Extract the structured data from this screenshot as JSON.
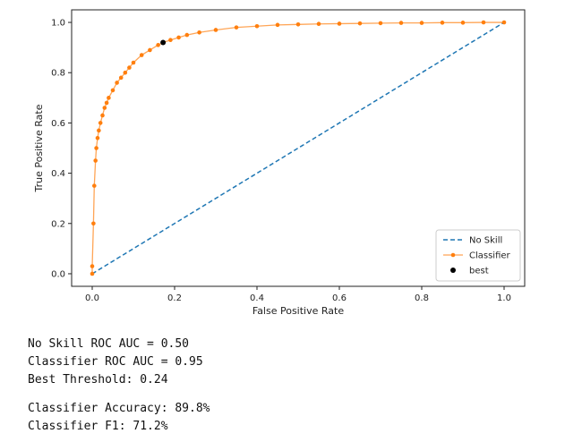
{
  "chart_data": {
    "type": "line",
    "xlabel": "False Positive Rate",
    "ylabel": "True Positive Rate",
    "xlim": [
      -0.05,
      1.05
    ],
    "ylim": [
      -0.05,
      1.05
    ],
    "xticks": [
      0.0,
      0.2,
      0.4,
      0.6,
      0.8,
      1.0
    ],
    "xtick_labels": [
      "0.0",
      "0.2",
      "0.4",
      "0.6",
      "0.8",
      "1.0"
    ],
    "yticks": [
      0.0,
      0.2,
      0.4,
      0.6,
      0.8,
      1.0
    ],
    "ytick_labels": [
      "0.0",
      "0.2",
      "0.4",
      "0.6",
      "0.8",
      "1.0"
    ],
    "grid": false,
    "legend_position": "lower-right",
    "series": [
      {
        "name": "No Skill",
        "style": "dashed",
        "color": "#1f77b4",
        "x": [
          0.0,
          1.0
        ],
        "y": [
          0.0,
          1.0
        ]
      },
      {
        "name": "Classifier",
        "style": "line-with-dots",
        "color": "#ff7f0e",
        "x": [
          0.0,
          0.0,
          0.003,
          0.005,
          0.008,
          0.01,
          0.013,
          0.016,
          0.02,
          0.025,
          0.03,
          0.035,
          0.04,
          0.05,
          0.06,
          0.07,
          0.08,
          0.09,
          0.1,
          0.12,
          0.14,
          0.16,
          0.172,
          0.19,
          0.21,
          0.23,
          0.26,
          0.3,
          0.35,
          0.4,
          0.45,
          0.5,
          0.55,
          0.6,
          0.65,
          0.7,
          0.75,
          0.8,
          0.85,
          0.9,
          0.95,
          1.0
        ],
        "y": [
          0.0,
          0.03,
          0.2,
          0.35,
          0.45,
          0.5,
          0.54,
          0.57,
          0.6,
          0.63,
          0.66,
          0.68,
          0.7,
          0.73,
          0.76,
          0.78,
          0.8,
          0.82,
          0.84,
          0.87,
          0.89,
          0.91,
          0.92,
          0.93,
          0.94,
          0.95,
          0.96,
          0.97,
          0.98,
          0.985,
          0.99,
          0.992,
          0.994,
          0.995,
          0.996,
          0.997,
          0.998,
          0.998,
          0.999,
          0.999,
          1.0,
          1.0
        ]
      },
      {
        "name": "best",
        "style": "point",
        "color": "#000000",
        "x": [
          0.172
        ],
        "y": [
          0.92
        ]
      }
    ]
  },
  "output": {
    "no_skill_auc": "No Skill ROC AUC = 0.50",
    "classifier_auc": "Classifier ROC AUC = 0.95",
    "best_threshold": "Best Threshold: 0.24",
    "accuracy": "Classifier Accuracy: 89.8%",
    "f1": "Classifier F1: 71.2%"
  }
}
